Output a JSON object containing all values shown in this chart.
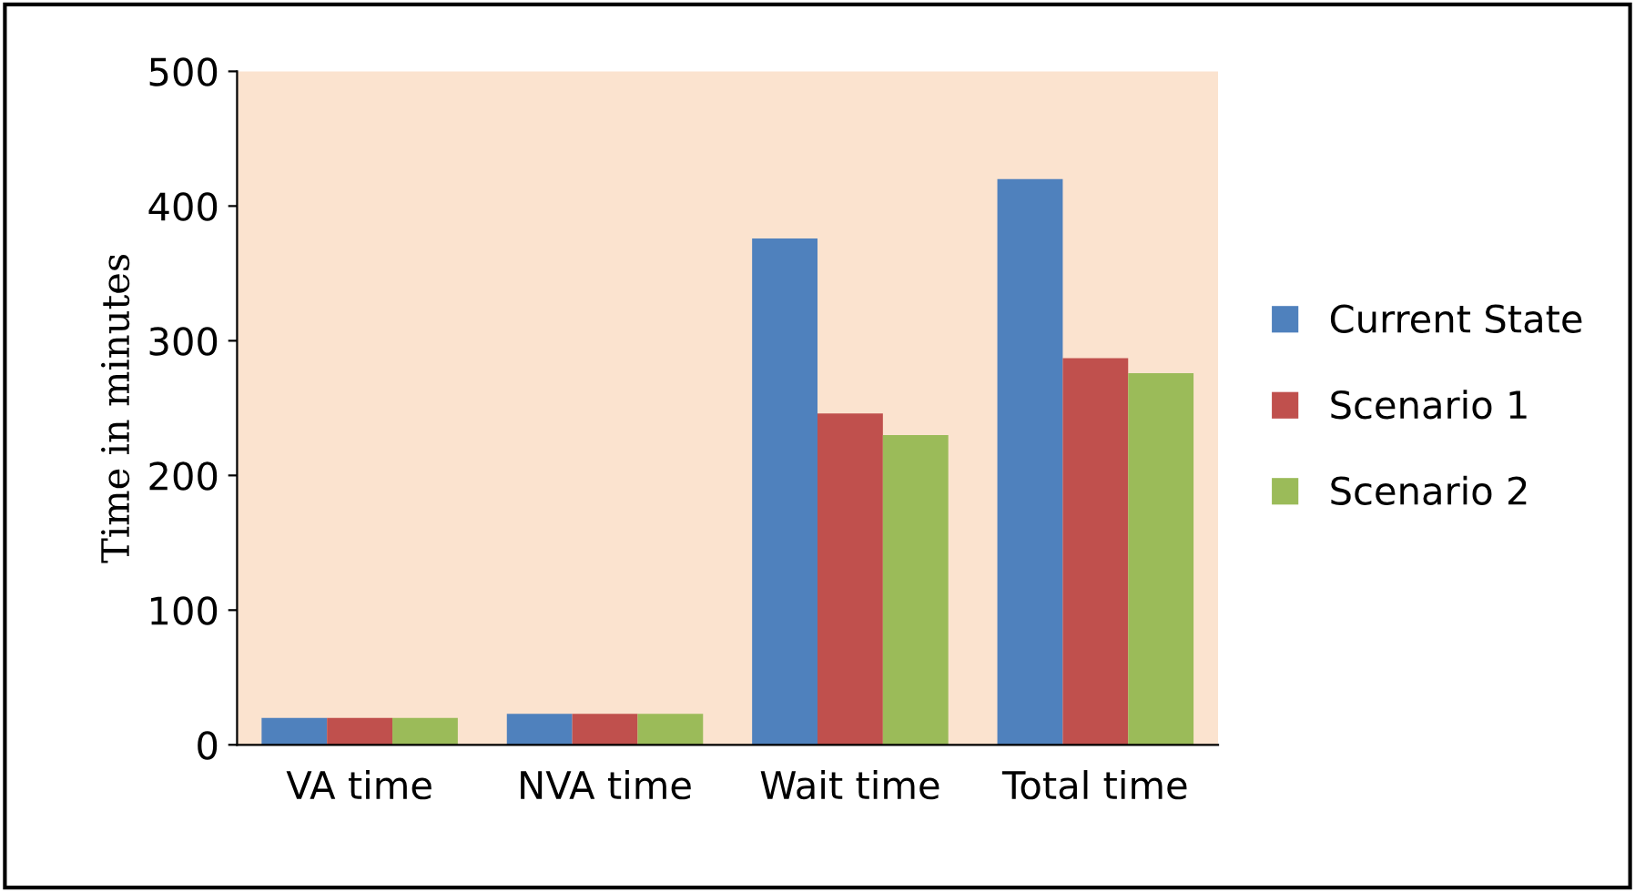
{
  "chart_data": {
    "type": "bar",
    "ylabel": "Time in minutes",
    "categories": [
      "VA time",
      "NVA time",
      "Wait time",
      "Total time"
    ],
    "series": [
      {
        "name": "Current State",
        "color": "#4f81bd",
        "values": [
          20,
          23,
          376,
          420
        ]
      },
      {
        "name": "Scenario 1",
        "color": "#c0504d",
        "values": [
          20,
          23,
          246,
          287
        ]
      },
      {
        "name": "Scenario 2",
        "color": "#9bbb59",
        "values": [
          20,
          23,
          230,
          276
        ]
      }
    ],
    "ylim": [
      0,
      500
    ],
    "yticks": [
      0,
      100,
      200,
      300,
      400,
      500
    ],
    "grid": false,
    "legend": "right"
  }
}
